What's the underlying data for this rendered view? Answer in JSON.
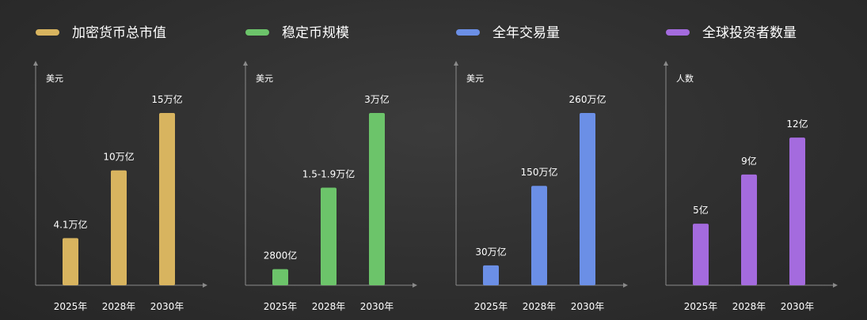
{
  "chart_data": [
    {
      "type": "bar",
      "name": "加密货币总市值",
      "unit": "美元",
      "color": "#d8b45f",
      "categories": [
        "2025年",
        "2028年",
        "2030年"
      ],
      "values": [
        4.1,
        10,
        15
      ],
      "value_labels": [
        "4.1万亿",
        "10万亿",
        "15万亿"
      ],
      "ylim": [
        0,
        15
      ]
    },
    {
      "type": "bar",
      "name": "稳定币规模",
      "unit": "美元",
      "color": "#6cc46a",
      "categories": [
        "2025年",
        "2028年",
        "2030年"
      ],
      "values": [
        0.28,
        1.7,
        3
      ],
      "value_labels": [
        "2800亿",
        "1.5-1.9万亿",
        "3万亿"
      ],
      "ylim": [
        0,
        3
      ]
    },
    {
      "type": "bar",
      "name": "全年交易量",
      "unit": "美元",
      "color": "#6b8fe6",
      "categories": [
        "2025年",
        "2028年",
        "2030年"
      ],
      "values": [
        30,
        150,
        260
      ],
      "value_labels": [
        "30万亿",
        "150万亿",
        "260万亿"
      ],
      "ylim": [
        0,
        260
      ]
    },
    {
      "type": "bar",
      "name": "全球投资者数量",
      "unit": "人数",
      "color": "#a46bde",
      "categories": [
        "2025年",
        "2028年",
        "2030年"
      ],
      "values": [
        5,
        9,
        12
      ],
      "value_labels": [
        "5亿",
        "9亿",
        "12亿"
      ],
      "ylim": [
        0,
        14
      ]
    }
  ]
}
